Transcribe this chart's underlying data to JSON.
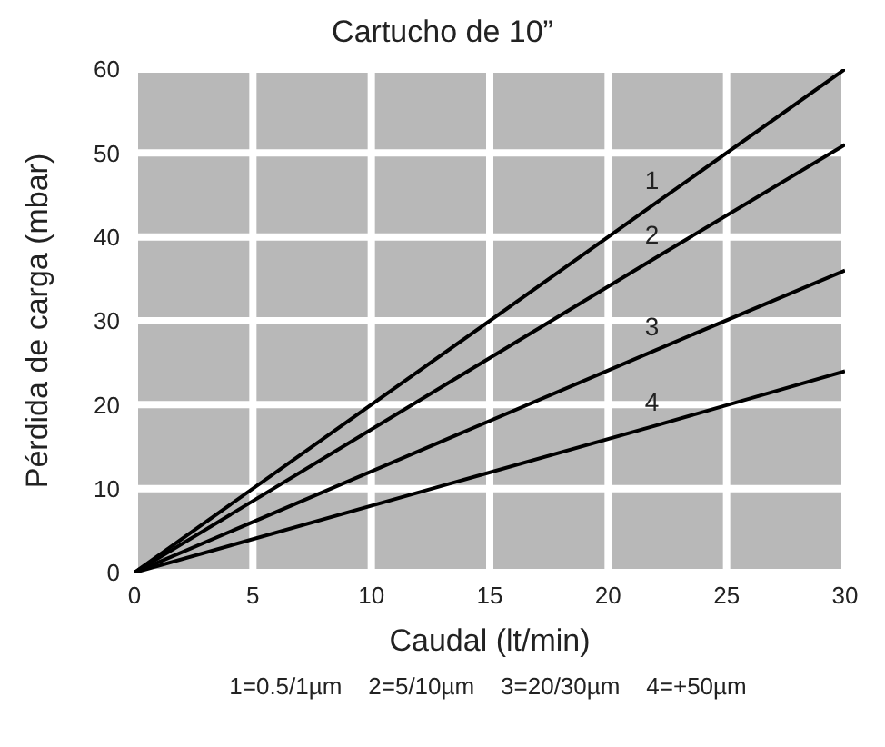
{
  "chart_data": {
    "type": "line",
    "title": "Cartucho de 10”",
    "xlabel": "Caudal (lt/min)",
    "ylabel": "Pérdida de carga (mbar)",
    "x": [
      0,
      22,
      30
    ],
    "series": [
      {
        "name": "1",
        "color": "#000000",
        "values": [
          0,
          44,
          60
        ]
      },
      {
        "name": "2",
        "color": "#000000",
        "values": [
          0,
          37.5,
          51
        ]
      },
      {
        "name": "3",
        "color": "#000000",
        "values": [
          0,
          26.5,
          36
        ]
      },
      {
        "name": "4",
        "color": "#000000",
        "values": [
          0,
          17.5,
          24
        ]
      }
    ],
    "xlim": [
      0,
      30
    ],
    "xticks": [
      0,
      5,
      10,
      15,
      20,
      25,
      30
    ],
    "ylim": [
      0,
      60
    ],
    "yticks": [
      0,
      10,
      20,
      30,
      40,
      50,
      60
    ],
    "grid": true,
    "marker": "none",
    "line_style": "solid",
    "annotations": [
      "1=0.5/1µm    2=5/10µm    3=20/30µm    4=+50µm"
    ]
  }
}
